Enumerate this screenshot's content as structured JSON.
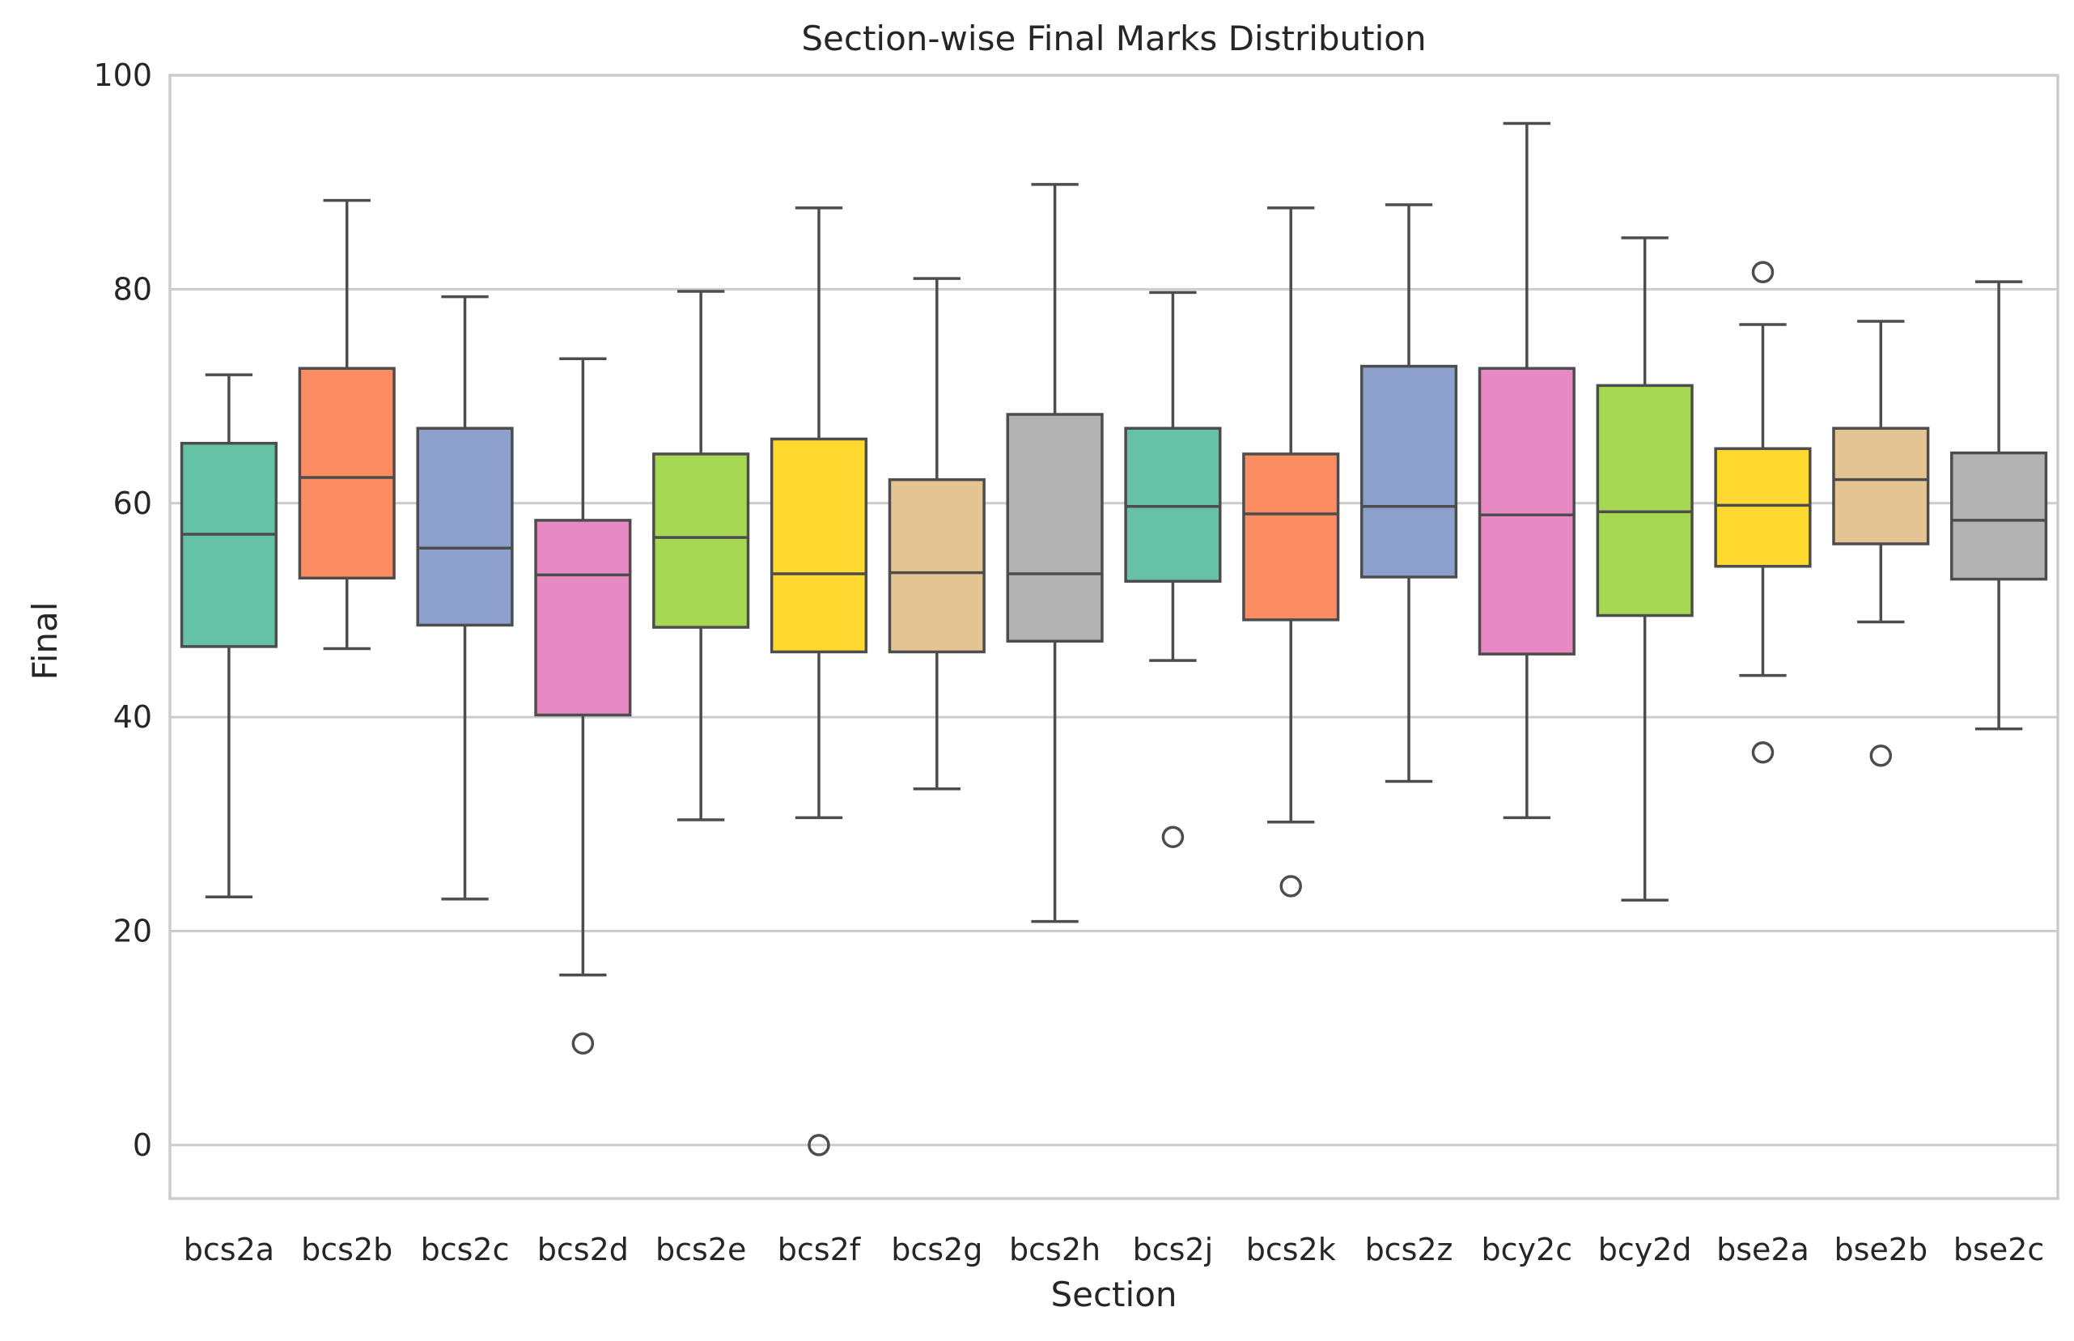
{
  "chart_data": {
    "type": "box",
    "title": "Section-wise Final Marks Distribution",
    "xlabel": "Section",
    "ylabel": "Final",
    "ylim": [
      -5,
      100
    ],
    "yticks": [
      0,
      20,
      40,
      60,
      80,
      100
    ],
    "grid": "horizontal",
    "palette": [
      "#66c2a5",
      "#fc8d62",
      "#8da0cb",
      "#e78ac3",
      "#a6d854",
      "#ffd92f",
      "#e5c494",
      "#b3b3b3"
    ],
    "line_color": "#4d4d4d",
    "categories": [
      "bcs2a",
      "bcs2b",
      "bcs2c",
      "bcs2d",
      "bcs2e",
      "bcs2f",
      "bcs2g",
      "bcs2h",
      "bcs2j",
      "bcs2k",
      "bcs2z",
      "bcy2c",
      "bcy2d",
      "bse2a",
      "bse2b",
      "bse2c"
    ],
    "boxes": [
      {
        "section": "bcs2a",
        "whisker_low": 23.2,
        "q1": 46.6,
        "median": 57.1,
        "q3": 65.6,
        "whisker_high": 72.0,
        "outliers": []
      },
      {
        "section": "bcs2b",
        "whisker_low": 46.4,
        "q1": 53.0,
        "median": 62.4,
        "q3": 72.6,
        "whisker_high": 88.3,
        "outliers": []
      },
      {
        "section": "bcs2c",
        "whisker_low": 23.0,
        "q1": 48.6,
        "median": 55.8,
        "q3": 67.0,
        "whisker_high": 79.3,
        "outliers": []
      },
      {
        "section": "bcs2d",
        "whisker_low": 15.9,
        "q1": 40.2,
        "median": 53.3,
        "q3": 58.4,
        "whisker_high": 73.5,
        "outliers": [
          9.5
        ]
      },
      {
        "section": "bcs2e",
        "whisker_low": 30.4,
        "q1": 48.4,
        "median": 56.8,
        "q3": 64.6,
        "whisker_high": 79.8,
        "outliers": []
      },
      {
        "section": "bcs2f",
        "whisker_low": 30.6,
        "q1": 46.1,
        "median": 53.4,
        "q3": 66.0,
        "whisker_high": 87.6,
        "outliers": [
          0.0
        ]
      },
      {
        "section": "bcs2g",
        "whisker_low": 33.3,
        "q1": 46.1,
        "median": 53.5,
        "q3": 62.2,
        "whisker_high": 81.0,
        "outliers": []
      },
      {
        "section": "bcs2h",
        "whisker_low": 20.9,
        "q1": 47.1,
        "median": 53.4,
        "q3": 68.3,
        "whisker_high": 89.8,
        "outliers": []
      },
      {
        "section": "bcs2j",
        "whisker_low": 45.3,
        "q1": 52.7,
        "median": 59.7,
        "q3": 67.0,
        "whisker_high": 79.7,
        "outliers": [
          28.8
        ]
      },
      {
        "section": "bcs2k",
        "whisker_low": 30.2,
        "q1": 49.1,
        "median": 59.0,
        "q3": 64.6,
        "whisker_high": 87.6,
        "outliers": [
          24.2
        ]
      },
      {
        "section": "bcs2z",
        "whisker_low": 34.0,
        "q1": 53.1,
        "median": 59.7,
        "q3": 72.8,
        "whisker_high": 87.9,
        "outliers": []
      },
      {
        "section": "bcy2c",
        "whisker_low": 30.6,
        "q1": 45.9,
        "median": 58.9,
        "q3": 72.6,
        "whisker_high": 95.5,
        "outliers": []
      },
      {
        "section": "bcy2d",
        "whisker_low": 22.9,
        "q1": 49.5,
        "median": 59.2,
        "q3": 71.0,
        "whisker_high": 84.8,
        "outliers": []
      },
      {
        "section": "bse2a",
        "whisker_low": 43.9,
        "q1": 54.1,
        "median": 59.8,
        "q3": 65.1,
        "whisker_high": 76.7,
        "outliers": [
          36.7,
          81.6
        ]
      },
      {
        "section": "bse2b",
        "whisker_low": 48.9,
        "q1": 56.2,
        "median": 62.2,
        "q3": 67.0,
        "whisker_high": 77.0,
        "outliers": [
          36.4
        ]
      },
      {
        "section": "bse2c",
        "whisker_low": 38.9,
        "q1": 52.9,
        "median": 58.4,
        "q3": 64.7,
        "whisker_high": 80.7,
        "outliers": []
      }
    ]
  }
}
